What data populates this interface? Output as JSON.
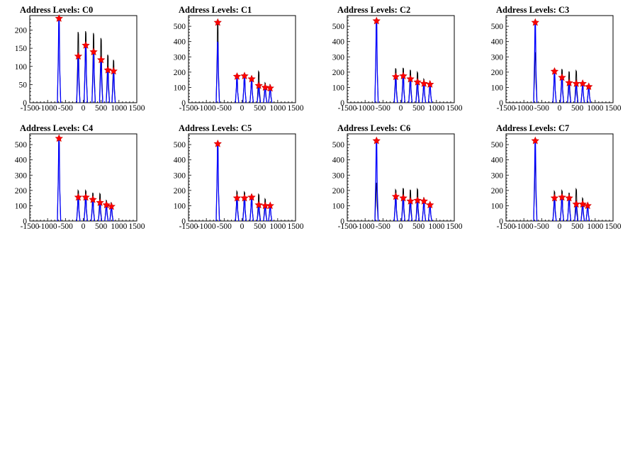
{
  "chart_data": [
    {
      "type": "histogram",
      "title": "Address Levels: C0",
      "xlim": [
        -1500,
        1500
      ],
      "ylim": [
        0,
        240
      ],
      "xticks": [
        -1500,
        -1000,
        -500,
        0,
        500,
        1000,
        1500
      ],
      "yticks": [
        0,
        50,
        100,
        150,
        200
      ],
      "series": [
        {
          "color": "#000000",
          "peaks": [
            [
              -680,
              225
            ],
            [
              -140,
              195
            ],
            [
              70,
              197
            ],
            [
              290,
              192
            ],
            [
              500,
              178
            ],
            [
              690,
              132
            ],
            [
              850,
              118
            ]
          ]
        },
        {
          "color": "#0000ff",
          "peaks": [
            [
              -680,
              232
            ],
            [
              -140,
              128
            ],
            [
              70,
              158
            ],
            [
              290,
              140
            ],
            [
              500,
              118
            ],
            [
              690,
              90
            ],
            [
              850,
              87
            ]
          ]
        }
      ],
      "markers": [
        [
          -680,
          232
        ],
        [
          -140,
          128
        ],
        [
          70,
          158
        ],
        [
          290,
          140
        ],
        [
          500,
          118
        ],
        [
          690,
          90
        ],
        [
          850,
          87
        ]
      ]
    },
    {
      "type": "histogram",
      "title": "Address Levels: C1",
      "xlim": [
        -1500,
        1500
      ],
      "ylim": [
        0,
        570
      ],
      "xticks": [
        -1500,
        -1000,
        -500,
        0,
        500,
        1000,
        1500
      ],
      "yticks": [
        0,
        100,
        200,
        300,
        400,
        500
      ],
      "series": [
        {
          "color": "#000000",
          "peaks": [
            [
              -680,
              525
            ],
            [
              -140,
              180
            ],
            [
              70,
              185
            ],
            [
              270,
              170
            ],
            [
              470,
              205
            ],
            [
              650,
              130
            ],
            [
              790,
              118
            ]
          ]
        },
        {
          "color": "#0000ff",
          "peaks": [
            [
              -680,
              400
            ],
            [
              -140,
              172
            ],
            [
              70,
              175
            ],
            [
              270,
              155
            ],
            [
              470,
              112
            ],
            [
              650,
              100
            ],
            [
              790,
              95
            ]
          ]
        }
      ],
      "markers": [
        [
          -680,
          525
        ],
        [
          -140,
          172
        ],
        [
          70,
          175
        ],
        [
          270,
          155
        ],
        [
          470,
          112
        ],
        [
          650,
          100
        ],
        [
          790,
          95
        ]
      ]
    },
    {
      "type": "histogram",
      "title": "Address Levels: C2",
      "xlim": [
        -1500,
        1500
      ],
      "ylim": [
        0,
        570
      ],
      "xticks": [
        -1500,
        -1000,
        -500,
        0,
        500,
        1000,
        1500
      ],
      "yticks": [
        0,
        100,
        200,
        300,
        400,
        500
      ],
      "series": [
        {
          "color": "#000000",
          "peaks": [
            [
              -680,
              540
            ],
            [
              -140,
              225
            ],
            [
              70,
              228
            ],
            [
              270,
              215
            ],
            [
              470,
              200
            ],
            [
              650,
              155
            ],
            [
              820,
              140
            ]
          ]
        },
        {
          "color": "#0000ff",
          "peaks": [
            [
              -680,
              535
            ],
            [
              -140,
              170
            ],
            [
              70,
              175
            ],
            [
              270,
              155
            ],
            [
              470,
              135
            ],
            [
              650,
              125
            ],
            [
              820,
              120
            ]
          ]
        }
      ],
      "markers": [
        [
          -680,
          535
        ],
        [
          -140,
          170
        ],
        [
          70,
          175
        ],
        [
          270,
          155
        ],
        [
          470,
          135
        ],
        [
          650,
          125
        ],
        [
          820,
          120
        ]
      ]
    },
    {
      "type": "histogram",
      "title": "Address Levels: C3",
      "xlim": [
        -1500,
        1500
      ],
      "ylim": [
        0,
        570
      ],
      "xticks": [
        -1500,
        -1000,
        -500,
        0,
        500,
        1000,
        1500
      ],
      "yticks": [
        0,
        100,
        200,
        300,
        400,
        500
      ],
      "series": [
        {
          "color": "#000000",
          "peaks": [
            [
              -680,
              330
            ],
            [
              -140,
              215
            ],
            [
              70,
              220
            ],
            [
              270,
              205
            ],
            [
              470,
              210
            ],
            [
              650,
              140
            ],
            [
              820,
              120
            ]
          ]
        },
        {
          "color": "#0000ff",
          "peaks": [
            [
              -680,
              525
            ],
            [
              -140,
              205
            ],
            [
              70,
              165
            ],
            [
              270,
              130
            ],
            [
              470,
              125
            ],
            [
              650,
              125
            ],
            [
              820,
              105
            ]
          ]
        }
      ],
      "markers": [
        [
          -680,
          525
        ],
        [
          -140,
          205
        ],
        [
          70,
          165
        ],
        [
          270,
          130
        ],
        [
          470,
          125
        ],
        [
          650,
          125
        ],
        [
          820,
          105
        ]
      ]
    },
    {
      "type": "histogram",
      "title": "Address Levels: C4",
      "xlim": [
        -1500,
        1500
      ],
      "ylim": [
        0,
        570
      ],
      "xticks": [
        -1500,
        -1000,
        -500,
        0,
        500,
        1000,
        1500
      ],
      "yticks": [
        0,
        100,
        200,
        300,
        400,
        500
      ],
      "series": [
        {
          "color": "#000000",
          "peaks": [
            [
              -680,
              545
            ],
            [
              -140,
              200
            ],
            [
              70,
              200
            ],
            [
              270,
              185
            ],
            [
              470,
              180
            ],
            [
              650,
              135
            ],
            [
              790,
              120
            ]
          ]
        },
        {
          "color": "#0000ff",
          "peaks": [
            [
              -680,
              530
            ],
            [
              -140,
              155
            ],
            [
              70,
              155
            ],
            [
              270,
              140
            ],
            [
              470,
              120
            ],
            [
              650,
              105
            ],
            [
              790,
              95
            ]
          ]
        }
      ],
      "markers": [
        [
          -680,
          540
        ],
        [
          -140,
          155
        ],
        [
          70,
          155
        ],
        [
          270,
          140
        ],
        [
          470,
          120
        ],
        [
          650,
          105
        ],
        [
          790,
          95
        ]
      ]
    },
    {
      "type": "histogram",
      "title": "Address Levels: C5",
      "xlim": [
        -1500,
        1500
      ],
      "ylim": [
        0,
        570
      ],
      "xticks": [
        -1500,
        -1000,
        -500,
        0,
        500,
        1000,
        1500
      ],
      "yticks": [
        0,
        100,
        200,
        300,
        400,
        500
      ],
      "series": [
        {
          "color": "#000000",
          "peaks": [
            [
              -680,
              510
            ],
            [
              -140,
              195
            ],
            [
              70,
              190
            ],
            [
              270,
              170
            ],
            [
              470,
              175
            ],
            [
              650,
              145
            ],
            [
              790,
              110
            ]
          ]
        },
        {
          "color": "#0000ff",
          "peaks": [
            [
              -680,
              500
            ],
            [
              -140,
              150
            ],
            [
              70,
              150
            ],
            [
              270,
              155
            ],
            [
              470,
              105
            ],
            [
              650,
              100
            ],
            [
              790,
              100
            ]
          ]
        }
      ],
      "markers": [
        [
          -680,
          505
        ],
        [
          -140,
          150
        ],
        [
          70,
          150
        ],
        [
          270,
          155
        ],
        [
          470,
          105
        ],
        [
          650,
          100
        ],
        [
          790,
          100
        ]
      ]
    },
    {
      "type": "histogram",
      "title": "Address Levels: C6",
      "xlim": [
        -1500,
        1500
      ],
      "ylim": [
        0,
        570
      ],
      "xticks": [
        -1500,
        -1000,
        -500,
        0,
        500,
        1000,
        1500
      ],
      "yticks": [
        0,
        100,
        200,
        300,
        400,
        500
      ],
      "series": [
        {
          "color": "#000000",
          "peaks": [
            [
              -680,
              250
            ],
            [
              -140,
              205
            ],
            [
              70,
              215
            ],
            [
              270,
              205
            ],
            [
              470,
              210
            ],
            [
              650,
              150
            ],
            [
              820,
              120
            ]
          ]
        },
        {
          "color": "#0000ff",
          "peaks": [
            [
              -680,
              525
            ],
            [
              -140,
              160
            ],
            [
              70,
              150
            ],
            [
              270,
              130
            ],
            [
              470,
              135
            ],
            [
              650,
              130
            ],
            [
              820,
              105
            ]
          ]
        }
      ],
      "markers": [
        [
          -680,
          525
        ],
        [
          -140,
          160
        ],
        [
          70,
          150
        ],
        [
          270,
          130
        ],
        [
          470,
          135
        ],
        [
          650,
          130
        ],
        [
          820,
          105
        ]
      ]
    },
    {
      "type": "histogram",
      "title": "Address Levels: C7",
      "xlim": [
        -1500,
        1500
      ],
      "ylim": [
        0,
        570
      ],
      "xticks": [
        -1500,
        -1000,
        -500,
        0,
        500,
        1000,
        1500
      ],
      "yticks": [
        0,
        100,
        200,
        300,
        400,
        500
      ],
      "series": [
        {
          "color": "#000000",
          "peaks": [
            [
              -680,
              395
            ],
            [
              -140,
              195
            ],
            [
              70,
              200
            ],
            [
              270,
              185
            ],
            [
              470,
              210
            ],
            [
              650,
              150
            ],
            [
              790,
              115
            ]
          ]
        },
        {
          "color": "#0000ff",
          "peaks": [
            [
              -680,
              525
            ],
            [
              -140,
              150
            ],
            [
              70,
              155
            ],
            [
              270,
              150
            ],
            [
              470,
              110
            ],
            [
              650,
              110
            ],
            [
              790,
              100
            ]
          ]
        }
      ],
      "markers": [
        [
          -680,
          525
        ],
        [
          -140,
          150
        ],
        [
          70,
          155
        ],
        [
          270,
          150
        ],
        [
          470,
          110
        ],
        [
          650,
          110
        ],
        [
          790,
          100
        ]
      ]
    }
  ]
}
